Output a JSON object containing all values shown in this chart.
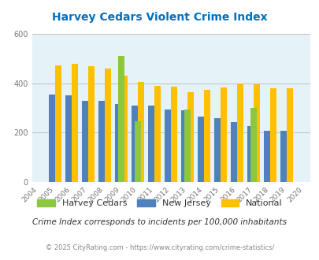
{
  "title": "Harvey Cedars Violent Crime Index",
  "all_years": [
    2004,
    2005,
    2006,
    2007,
    2008,
    2009,
    2010,
    2011,
    2012,
    2013,
    2014,
    2015,
    2016,
    2017,
    2018,
    2019,
    2020
  ],
  "data_years": [
    2005,
    2006,
    2007,
    2008,
    2009,
    2010,
    2011,
    2012,
    2013,
    2014,
    2015,
    2016,
    2017,
    2018,
    2019
  ],
  "harvey_cedars": {
    "2009": 510,
    "2010": 247,
    "2013": 293,
    "2017": 300
  },
  "new_jersey": [
    355,
    350,
    328,
    330,
    315,
    310,
    310,
    295,
    290,
    265,
    258,
    243,
    228,
    208,
    208
  ],
  "national": [
    473,
    477,
    470,
    458,
    430,
    404,
    388,
    387,
    365,
    374,
    383,
    398,
    395,
    381,
    379
  ],
  "harvey_color": "#8DC63F",
  "nj_color": "#4F81BD",
  "national_color": "#FFC000",
  "bg_color": "#E5F2F7",
  "title_color": "#0070C0",
  "subtitle": "Crime Index corresponds to incidents per 100,000 inhabitants",
  "footer": "© 2025 CityRating.com - https://www.cityrating.com/crime-statistics/",
  "ylim": [
    0,
    600
  ],
  "yticks": [
    0,
    200,
    400,
    600
  ],
  "bar_width": 0.38
}
